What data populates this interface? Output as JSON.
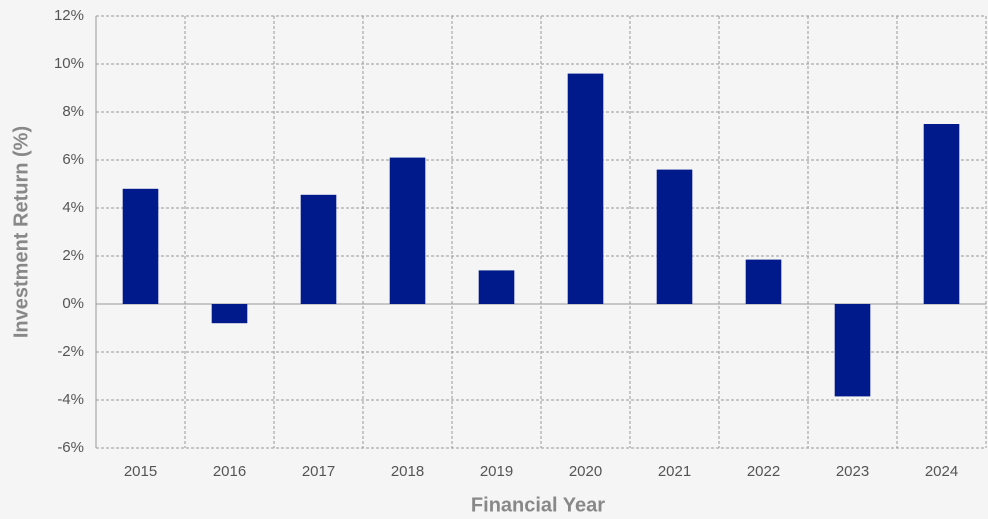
{
  "chart_data": {
    "type": "bar",
    "x_label": "Financial Year",
    "y_label": "Investment Return (%)",
    "categories": [
      "2015",
      "2016",
      "2017",
      "2018",
      "2019",
      "2020",
      "2021",
      "2022",
      "2023",
      "2024"
    ],
    "values": [
      4.8,
      -0.8,
      4.55,
      6.1,
      1.4,
      9.6,
      5.6,
      1.85,
      -3.85,
      7.5
    ],
    "color": "#001a8c",
    "ylim": [
      -6,
      12
    ],
    "yticks": [
      {
        "value": -6,
        "label": "-6%"
      },
      {
        "value": -4,
        "label": "-4%"
      },
      {
        "value": -2,
        "label": "-2%"
      },
      {
        "value": 0,
        "label": "0%"
      },
      {
        "value": 2,
        "label": "2%"
      },
      {
        "value": 4,
        "label": "4%"
      },
      {
        "value": 6,
        "label": "6%"
      },
      {
        "value": 8,
        "label": "8%"
      },
      {
        "value": 10,
        "label": "10%"
      },
      {
        "value": 12,
        "label": "12%"
      }
    ],
    "grid": true
  }
}
